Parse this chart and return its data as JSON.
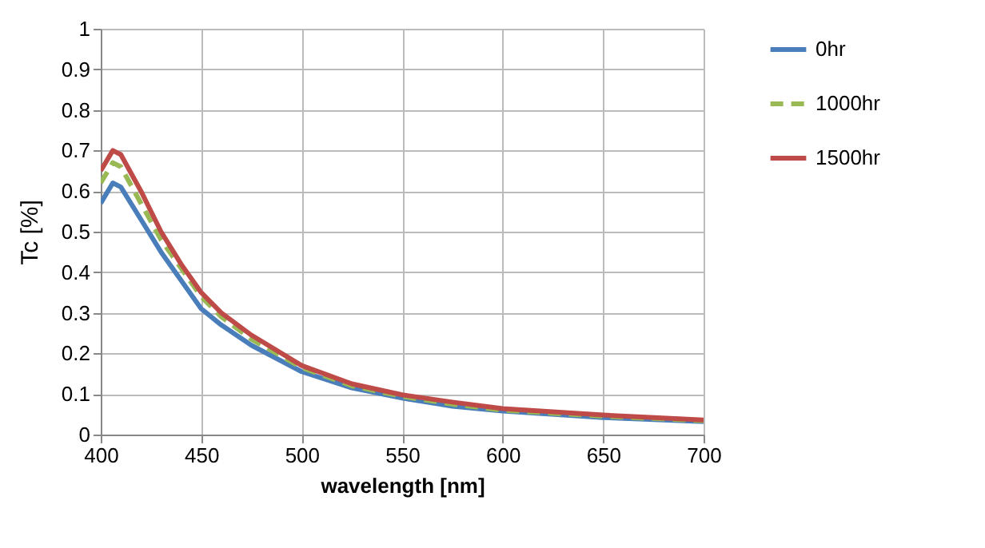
{
  "chart_data": {
    "type": "line",
    "xlabel": "wavelength [nm]",
    "ylabel": "Tc [%]",
    "x": [
      400,
      406,
      410,
      420,
      430,
      440,
      450,
      460,
      475,
      500,
      525,
      550,
      575,
      600,
      650,
      700
    ],
    "series": [
      {
        "name": "0hr",
        "color": "#4a7ebb",
        "line_style": "solid",
        "values": [
          0.57,
          0.62,
          0.61,
          0.53,
          0.45,
          0.38,
          0.31,
          0.27,
          0.22,
          0.155,
          0.115,
          0.09,
          0.07,
          0.058,
          0.042,
          0.032
        ]
      },
      {
        "name": "1000hr",
        "color": "#98b954",
        "line_style": "dashed",
        "values": [
          0.62,
          0.67,
          0.66,
          0.57,
          0.48,
          0.41,
          0.34,
          0.29,
          0.235,
          0.165,
          0.12,
          0.094,
          0.075,
          0.06,
          0.045,
          0.034
        ]
      },
      {
        "name": "1500hr",
        "color": "#be4b48",
        "line_style": "solid",
        "values": [
          0.65,
          0.7,
          0.69,
          0.6,
          0.5,
          0.42,
          0.35,
          0.3,
          0.245,
          0.17,
          0.125,
          0.098,
          0.08,
          0.064,
          0.048,
          0.036
        ]
      }
    ],
    "xlim": [
      400,
      700
    ],
    "xticks": [
      400,
      450,
      500,
      550,
      600,
      650,
      700
    ],
    "ylim": [
      0,
      1
    ],
    "yticks": [
      0,
      0.1,
      0.2,
      0.3,
      0.4,
      0.5,
      0.6,
      0.7,
      0.8,
      0.9,
      1
    ],
    "grid": true,
    "legend": "right",
    "marker": "none"
  }
}
